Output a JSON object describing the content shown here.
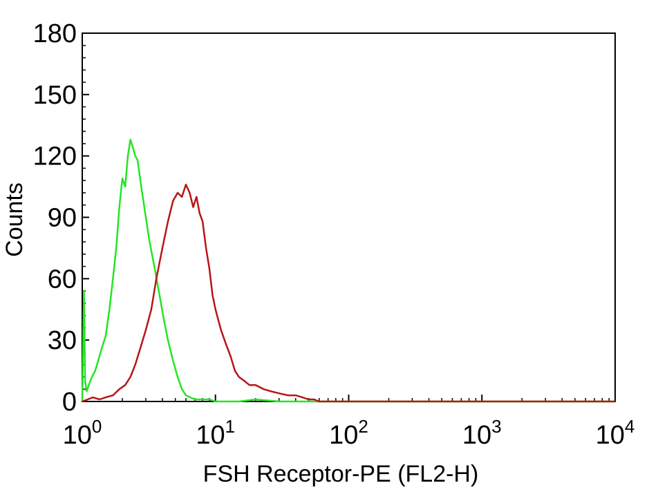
{
  "chart_data": {
    "type": "line",
    "title": "",
    "xlabel": "FSH Receptor-PE (FL2-H)",
    "ylabel": "Counts",
    "x_scale": "log",
    "xlim": [
      1,
      10000
    ],
    "ylim": [
      0,
      180
    ],
    "grid": false,
    "x_ticks": [
      {
        "base": "10",
        "exp": "0",
        "value": 1
      },
      {
        "base": "10",
        "exp": "1",
        "value": 10
      },
      {
        "base": "10",
        "exp": "2",
        "value": 100
      },
      {
        "base": "10",
        "exp": "3",
        "value": 1000
      },
      {
        "base": "10",
        "exp": "4",
        "value": 10000
      }
    ],
    "y_ticks": [
      "0",
      "30",
      "60",
      "90",
      "120",
      "150",
      "180"
    ],
    "series": [
      {
        "color": "#22e622",
        "x": [
          1.0,
          1.03,
          1.05,
          1.08,
          1.12,
          1.18,
          1.25,
          1.32,
          1.4,
          1.5,
          1.6,
          1.7,
          1.8,
          1.9,
          2.0,
          2.1,
          2.2,
          2.3,
          2.4,
          2.5,
          2.6,
          2.8,
          3.0,
          3.2,
          3.5,
          3.8,
          4.1,
          4.4,
          4.8,
          5.2,
          5.6,
          6.0,
          6.5,
          7.0,
          8.0,
          9.0,
          10.0,
          15.0,
          20.0,
          30.0,
          40.0,
          50.0,
          60.0,
          100.0,
          1000.0,
          10000.0
        ],
        "values": [
          0,
          54,
          10,
          5,
          8,
          12,
          15,
          20,
          26,
          32,
          45,
          60,
          75,
          95,
          109,
          105,
          120,
          128,
          124,
          120,
          118,
          103,
          90,
          78,
          65,
          52,
          40,
          30,
          20,
          12,
          6,
          3,
          2,
          1,
          1,
          1,
          0,
          0,
          1,
          0,
          0,
          0,
          0,
          0,
          0,
          0
        ]
      },
      {
        "color": "#b81414",
        "x": [
          1.0,
          1.1,
          1.2,
          1.35,
          1.5,
          1.7,
          1.9,
          2.1,
          2.3,
          2.5,
          2.7,
          3.0,
          3.3,
          3.6,
          4.0,
          4.4,
          4.8,
          5.2,
          5.6,
          6.0,
          6.4,
          6.8,
          7.2,
          7.6,
          8.0,
          8.5,
          9.0,
          9.5,
          10.0,
          11.0,
          12.0,
          13.0,
          14.0,
          15.0,
          16.5,
          18.0,
          20.0,
          23.0,
          26.0,
          30.0,
          35.0,
          40.0,
          45.0,
          50.0,
          55.0,
          60.0,
          100.0,
          1000.0,
          10000.0
        ],
        "values": [
          0,
          1,
          2,
          1,
          2,
          3,
          6,
          8,
          12,
          18,
          25,
          35,
          45,
          60,
          75,
          88,
          98,
          102,
          100,
          106,
          102,
          95,
          100,
          92,
          88,
          75,
          65,
          52,
          45,
          35,
          28,
          22,
          15,
          12,
          10,
          8,
          8,
          6,
          5,
          4,
          3,
          3,
          2,
          1,
          1,
          0,
          0,
          0,
          0
        ]
      }
    ]
  }
}
